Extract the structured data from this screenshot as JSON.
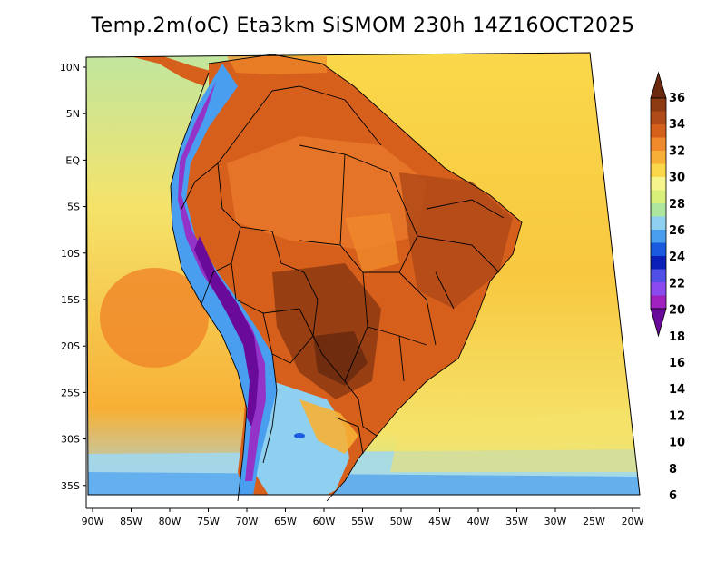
{
  "title": "Temp.2m(oC) Eta3km SiSMOM 230h 14Z16OCT2025",
  "latitude_labels": [
    "10N",
    "5N",
    "EQ",
    "5S",
    "10S",
    "15S",
    "20S",
    "25S",
    "30S",
    "35S"
  ],
  "longitude_labels": [
    "90W",
    "85W",
    "80W",
    "75W",
    "70W",
    "65W",
    "60W",
    "55W",
    "50W",
    "45W",
    "40W",
    "35W",
    "30W",
    "25W",
    "20W"
  ],
  "colorbar": {
    "labels": [
      "36",
      "34",
      "32",
      "30",
      "28",
      "26",
      "24",
      "22",
      "20",
      "18",
      "16",
      "14",
      "12",
      "10",
      "8",
      "6"
    ],
    "colors": [
      "#6b2a10",
      "#8c3a12",
      "#b04a18",
      "#d65f1c",
      "#f08a2a",
      "#f7b035",
      "#fad84a",
      "#f5f58c",
      "#d8f07a",
      "#aee6a0",
      "#8fd0f0",
      "#4a9ef0",
      "#1a5ae0",
      "#0a1fb8",
      "#5050e8",
      "#8a4af0",
      "#a020c0",
      "#6a0a9a"
    ]
  }
}
